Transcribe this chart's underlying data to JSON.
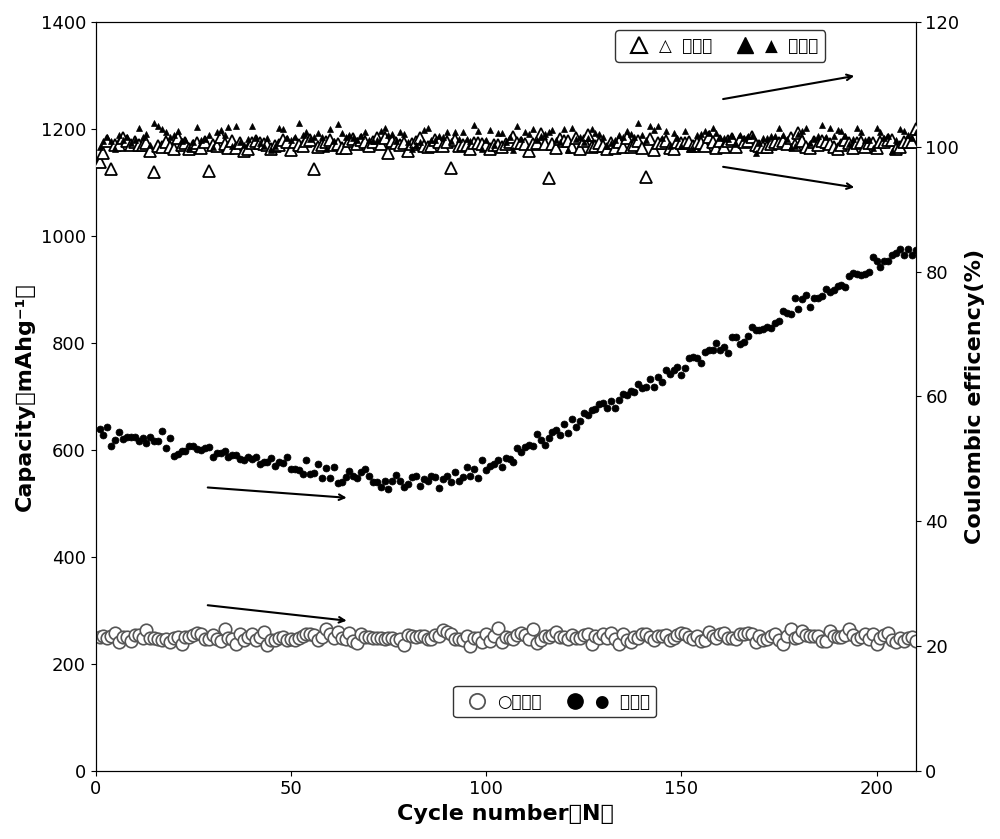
{
  "xlabel": "Cycle number（N）",
  "ylabel_left": "Capacity（mAhg⁻¹）",
  "ylabel_right": "Coulombic efficency(%)",
  "xlim": [
    0,
    210
  ],
  "ylim_left": [
    0,
    1400
  ],
  "ylim_right": [
    0,
    120
  ],
  "xticks": [
    0,
    50,
    100,
    150,
    200
  ],
  "yticks_left": [
    0,
    200,
    400,
    600,
    800,
    1000,
    1200,
    1400
  ],
  "yticks_right": [
    0,
    20,
    40,
    60,
    80,
    100,
    120
  ],
  "background_color": "#ffffff",
  "axis_fontsize": 16,
  "tick_fontsize": 13,
  "legend_fontsize": 12
}
